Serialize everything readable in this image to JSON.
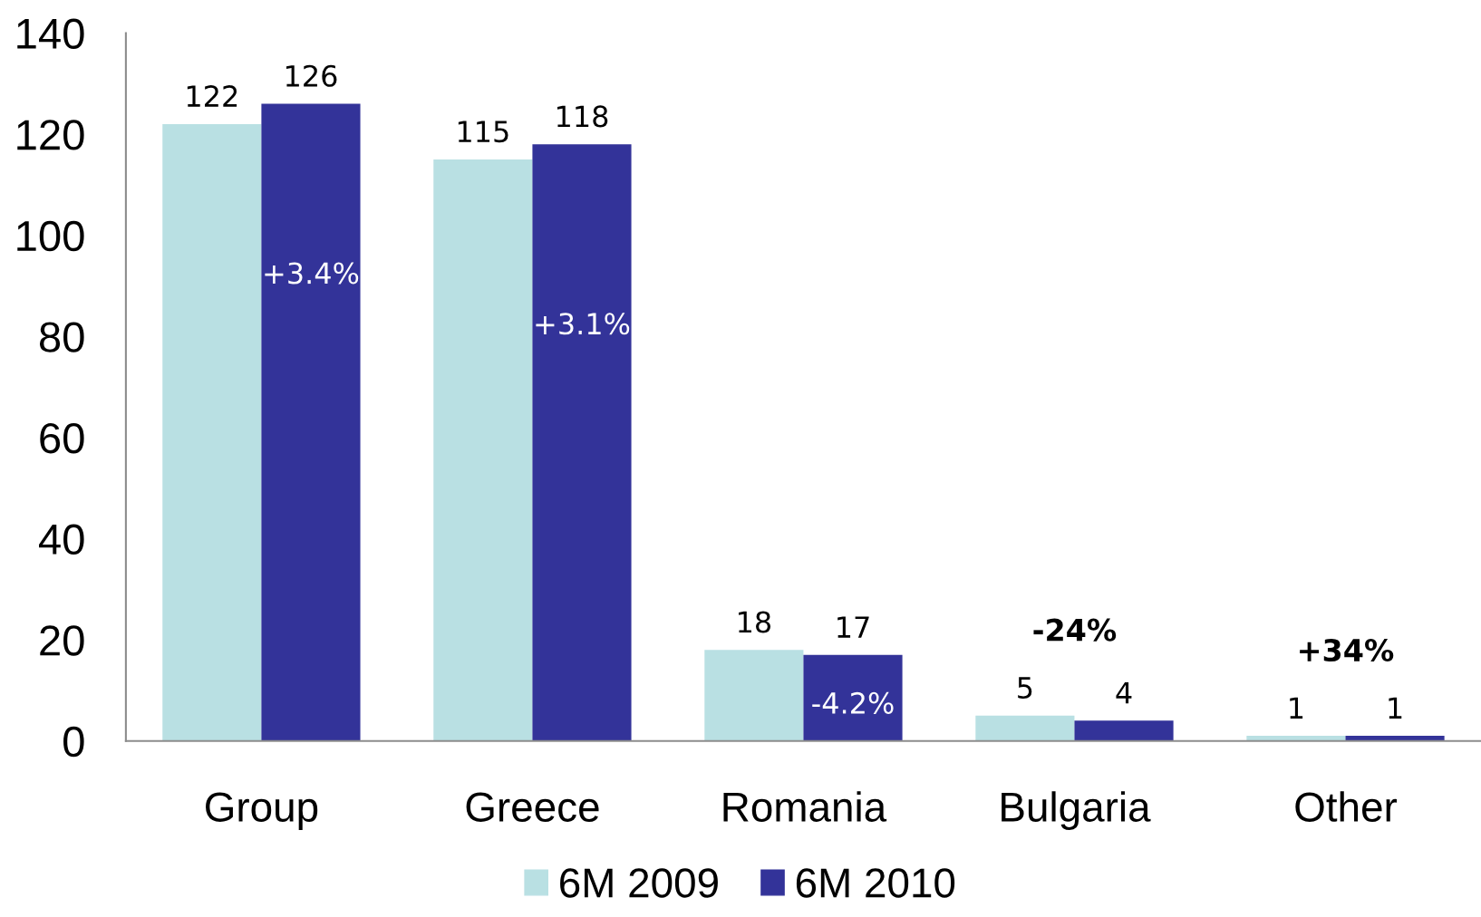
{
  "chart_data": {
    "type": "bar",
    "categories": [
      "Group",
      "Greece",
      "Romania",
      "Bulgaria",
      "Other"
    ],
    "series": [
      {
        "name": "6M 2009",
        "color": "#b9e0e3",
        "values": [
          122,
          115,
          18,
          5,
          1
        ]
      },
      {
        "name": "6M 2010",
        "color": "#333399",
        "values": [
          126,
          118,
          17,
          4,
          1
        ]
      }
    ],
    "ylim": [
      0,
      140
    ],
    "yticks": [
      0,
      20,
      40,
      60,
      80,
      100,
      120,
      140
    ],
    "data_labels": true,
    "grid": false,
    "legend": "bottom",
    "annotations": [
      {
        "text": "+3.4%",
        "x": "Group",
        "y": 92
      },
      {
        "text": "+3.1%",
        "x": "Greece",
        "y": 82
      },
      {
        "text": "-4.2%",
        "x": "Romania",
        "y": 7
      },
      {
        "text": "-24%",
        "x": "Bulgaria",
        "y": 5
      },
      {
        "text": "+34%",
        "x": "Other",
        "y": 1
      }
    ]
  }
}
